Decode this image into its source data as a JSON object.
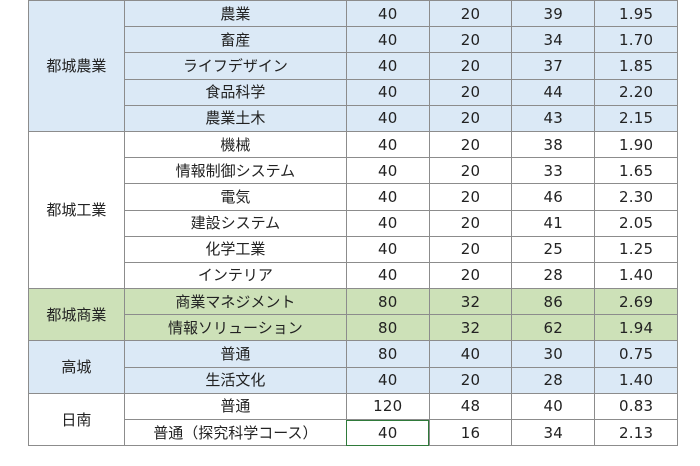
{
  "rows": [
    {
      "school": "都城農業",
      "dept": "農業",
      "c1": "40",
      "c2": "20",
      "c3": "39",
      "c4": "1.95"
    },
    {
      "dept": "畜産",
      "c1": "40",
      "c2": "20",
      "c3": "34",
      "c4": "1.70"
    },
    {
      "dept": "ライフデザイン",
      "c1": "40",
      "c2": "20",
      "c3": "37",
      "c4": "1.85"
    },
    {
      "dept": "食品科学",
      "c1": "40",
      "c2": "20",
      "c3": "44",
      "c4": "2.20"
    },
    {
      "dept": "農業土木",
      "c1": "40",
      "c2": "20",
      "c3": "43",
      "c4": "2.15"
    },
    {
      "school": "都城工業",
      "dept": "機械",
      "c1": "40",
      "c2": "20",
      "c3": "38",
      "c4": "1.90"
    },
    {
      "dept": "情報制御システム",
      "c1": "40",
      "c2": "20",
      "c3": "33",
      "c4": "1.65"
    },
    {
      "dept": "電気",
      "c1": "40",
      "c2": "20",
      "c3": "46",
      "c4": "2.30"
    },
    {
      "dept": "建設システム",
      "c1": "40",
      "c2": "20",
      "c3": "41",
      "c4": "2.05"
    },
    {
      "dept": "化学工業",
      "c1": "40",
      "c2": "20",
      "c3": "25",
      "c4": "1.25"
    },
    {
      "dept": "インテリア",
      "c1": "40",
      "c2": "20",
      "c3": "28",
      "c4": "1.40"
    },
    {
      "school": "都城商業",
      "dept": "商業マネジメント",
      "c1": "80",
      "c2": "32",
      "c3": "86",
      "c4": "2.69"
    },
    {
      "dept": "情報ソリューション",
      "c1": "80",
      "c2": "32",
      "c3": "62",
      "c4": "1.94"
    },
    {
      "school": "高城",
      "dept": "普通",
      "c1": "80",
      "c2": "40",
      "c3": "30",
      "c4": "0.75"
    },
    {
      "dept": "生活文化",
      "c1": "40",
      "c2": "20",
      "c3": "28",
      "c4": "1.40"
    },
    {
      "school": "日南",
      "dept": "普通",
      "c1": "120",
      "c2": "48",
      "c3": "40",
      "c4": "0.83"
    },
    {
      "dept": "普通（探究科学コース）",
      "c1": "40",
      "c2": "16",
      "c3": "34",
      "c4": "2.13"
    }
  ]
}
